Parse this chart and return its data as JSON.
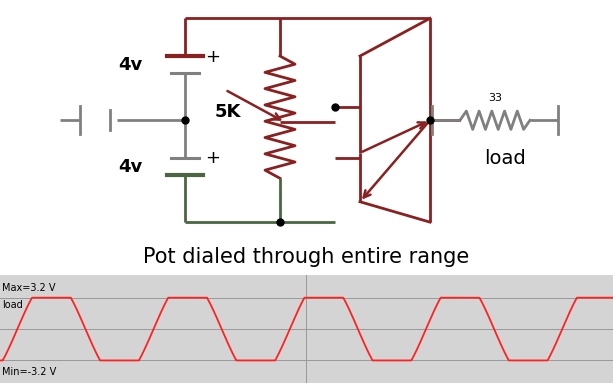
{
  "title": "Pot dialed through entire range",
  "circuit_bg": "#ffffff",
  "scope_bg": "#d4d4d4",
  "dr": "#8B2020",
  "gr": "#808080",
  "gn": "#4a6741",
  "wave_color": "#ff2222",
  "label_4v_top": "4v",
  "label_4v_bot": "4v",
  "label_5k": "5K",
  "label_load": "load",
  "label_33": "33",
  "label_max": "Max=3.2 V",
  "label_min": "Min=-3.2 V",
  "label_load_scope": "load",
  "wave_amplitude": 3.2,
  "title_fontsize": 15,
  "scope_label_fontsize": 7
}
